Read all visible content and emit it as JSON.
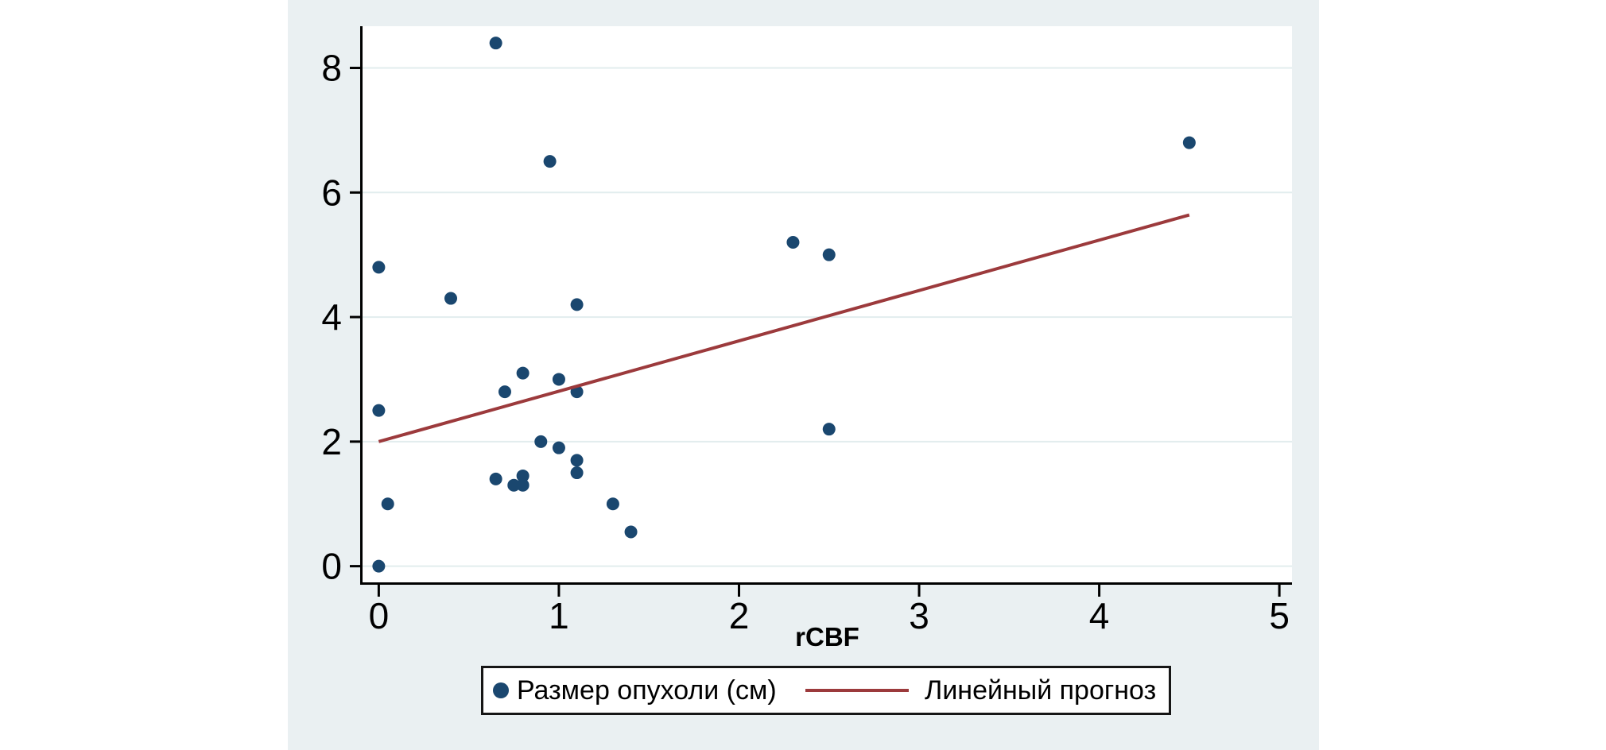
{
  "figure": {
    "background_color": "#EAF0F2",
    "plot_background_color": "#FFFFFF",
    "grid_color": "#E2EDEE",
    "axis_color": "#000000",
    "tick_label_color": "#000000",
    "tick_font_size": 46,
    "legend_border_color": "#161616"
  },
  "chart_data": {
    "type": "scatter",
    "title": "",
    "xlabel": "rCBF",
    "ylabel": "",
    "xlim": [
      -0.09,
      5.07
    ],
    "ylim": [
      -0.26,
      8.67
    ],
    "x_ticks": [
      0,
      1,
      2,
      3,
      4,
      5
    ],
    "y_ticks": [
      0,
      2,
      4,
      6,
      8
    ],
    "grid": "horizontal gridlines at y ticks",
    "legend_position": "bottom",
    "series": [
      {
        "name": "Размер опухоли (см)",
        "type": "scatter",
        "color": "#1A476F",
        "marker_radius": 8,
        "points": [
          [
            0,
            0
          ],
          [
            0.05,
            1
          ],
          [
            0,
            2.5
          ],
          [
            0,
            4.8
          ],
          [
            0.4,
            4.3
          ],
          [
            0.65,
            8.4
          ],
          [
            0.95,
            6.5
          ],
          [
            1.1,
            4.2
          ],
          [
            0.8,
            3.1
          ],
          [
            1,
            3
          ],
          [
            0.7,
            2.8
          ],
          [
            1.1,
            2.8
          ],
          [
            0.9,
            2
          ],
          [
            1,
            1.9
          ],
          [
            1.1,
            1.7
          ],
          [
            1.1,
            1.5
          ],
          [
            0.65,
            1.4
          ],
          [
            0.75,
            1.3
          ],
          [
            0.8,
            1.45
          ],
          [
            0.8,
            1.3
          ],
          [
            1.3,
            1
          ],
          [
            1.4,
            0.55
          ],
          [
            2.3,
            5.2
          ],
          [
            2.5,
            5
          ],
          [
            2.5,
            2.2
          ],
          [
            4.5,
            6.8
          ]
        ]
      },
      {
        "name": "Линейный прогноз",
        "type": "line",
        "color": "#9C3A3C",
        "line_width": 4,
        "points": [
          [
            0,
            2.0
          ],
          [
            4.5,
            5.64
          ]
        ]
      }
    ],
    "legend": [
      {
        "label": "Размер опухоли (см)",
        "marker": "dot",
        "color": "#1A476F"
      },
      {
        "label": "Линейный прогноз",
        "marker": "line",
        "color": "#9C3A3C"
      }
    ]
  }
}
